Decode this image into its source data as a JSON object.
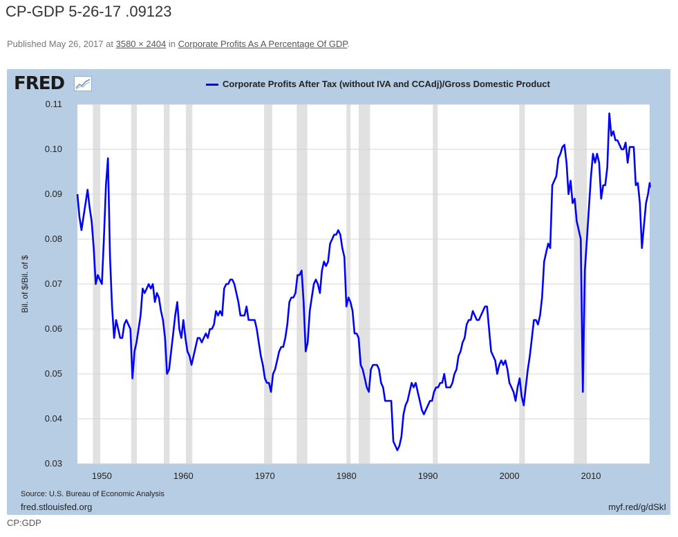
{
  "page": {
    "title": "CP-GDP 5-26-17 .09123",
    "published_prefix": "Published",
    "published_date": "May 26, 2017",
    "at_word": "at",
    "dimensions_link": "3580 × 2404",
    "in_word": "in",
    "category_link": "Corporate Profits As A Percentage Of GDP",
    "trailing_period": ".",
    "caption": "CP:GDP"
  },
  "fred": {
    "logo_text": "FRED",
    "source": "Source: U.S. Bureau of Economic Analysis",
    "site": "fred.stlouisfed.org",
    "short_url": "myf.red/g/dSkI"
  },
  "colors": {
    "series": "#0000ff",
    "recession": "#e1e1e1",
    "frame": "#b7cde3",
    "grid": "#d5d5d5"
  },
  "chart_data": {
    "type": "line",
    "title": "",
    "xlabel": "",
    "ylabel": "Bil. of $/Bil. of $",
    "xlim": [
      1947,
      2017.2
    ],
    "ylim": [
      0.03,
      0.11
    ],
    "x_ticks": [
      1950,
      1960,
      1970,
      1980,
      1990,
      2000,
      2010
    ],
    "y_ticks": [
      "0.03",
      "0.04",
      "0.05",
      "0.06",
      "0.07",
      "0.08",
      "0.09",
      "0.10",
      "0.11"
    ],
    "grid": "horizontal",
    "legend_position": "top-center",
    "recessions": [
      [
        1948.9,
        1949.8
      ],
      [
        1953.6,
        1954.3
      ],
      [
        1957.6,
        1958.3
      ],
      [
        1960.3,
        1961.1
      ],
      [
        1969.9,
        1970.9
      ],
      [
        1973.9,
        1975.2
      ],
      [
        1980.0,
        1980.5
      ],
      [
        1981.5,
        1982.9
      ],
      [
        1990.6,
        1991.2
      ],
      [
        2001.2,
        2001.9
      ],
      [
        2007.9,
        2009.5
      ]
    ],
    "series": [
      {
        "name": "Corporate Profits After Tax (without IVA and CCAdj)/Gross Domestic Product",
        "points": [
          [
            1947.0,
            0.09
          ],
          [
            1947.25,
            0.085
          ],
          [
            1947.5,
            0.082
          ],
          [
            1947.75,
            0.085
          ],
          [
            1948.0,
            0.088
          ],
          [
            1948.25,
            0.091
          ],
          [
            1948.5,
            0.087
          ],
          [
            1948.75,
            0.084
          ],
          [
            1949.0,
            0.078
          ],
          [
            1949.25,
            0.07
          ],
          [
            1949.5,
            0.072
          ],
          [
            1949.75,
            0.071
          ],
          [
            1950.0,
            0.07
          ],
          [
            1950.25,
            0.08
          ],
          [
            1950.5,
            0.092
          ],
          [
            1950.75,
            0.098
          ],
          [
            1951.0,
            0.076
          ],
          [
            1951.25,
            0.065
          ],
          [
            1951.5,
            0.058
          ],
          [
            1951.75,
            0.062
          ],
          [
            1952.0,
            0.06
          ],
          [
            1952.25,
            0.058
          ],
          [
            1952.5,
            0.058
          ],
          [
            1952.75,
            0.061
          ],
          [
            1953.0,
            0.062
          ],
          [
            1953.25,
            0.061
          ],
          [
            1953.5,
            0.06
          ],
          [
            1953.75,
            0.049
          ],
          [
            1954.0,
            0.055
          ],
          [
            1954.25,
            0.057
          ],
          [
            1954.5,
            0.06
          ],
          [
            1954.75,
            0.063
          ],
          [
            1955.0,
            0.069
          ],
          [
            1955.25,
            0.068
          ],
          [
            1955.5,
            0.069
          ],
          [
            1955.75,
            0.07
          ],
          [
            1956.0,
            0.069
          ],
          [
            1956.25,
            0.07
          ],
          [
            1956.5,
            0.066
          ],
          [
            1956.75,
            0.068
          ],
          [
            1957.0,
            0.067
          ],
          [
            1957.25,
            0.064
          ],
          [
            1957.5,
            0.062
          ],
          [
            1957.75,
            0.058
          ],
          [
            1958.0,
            0.05
          ],
          [
            1958.25,
            0.051
          ],
          [
            1958.5,
            0.055
          ],
          [
            1958.75,
            0.059
          ],
          [
            1959.0,
            0.063
          ],
          [
            1959.25,
            0.066
          ],
          [
            1959.5,
            0.06
          ],
          [
            1959.75,
            0.058
          ],
          [
            1960.0,
            0.062
          ],
          [
            1960.25,
            0.058
          ],
          [
            1960.5,
            0.055
          ],
          [
            1960.75,
            0.054
          ],
          [
            1961.0,
            0.052
          ],
          [
            1961.25,
            0.054
          ],
          [
            1961.5,
            0.056
          ],
          [
            1961.75,
            0.058
          ],
          [
            1962.0,
            0.058
          ],
          [
            1962.25,
            0.057
          ],
          [
            1962.5,
            0.058
          ],
          [
            1962.75,
            0.059
          ],
          [
            1963.0,
            0.058
          ],
          [
            1963.25,
            0.06
          ],
          [
            1963.5,
            0.06
          ],
          [
            1963.75,
            0.061
          ],
          [
            1964.0,
            0.064
          ],
          [
            1964.25,
            0.063
          ],
          [
            1964.5,
            0.064
          ],
          [
            1964.75,
            0.063
          ],
          [
            1965.0,
            0.069
          ],
          [
            1965.25,
            0.07
          ],
          [
            1965.5,
            0.07
          ],
          [
            1965.75,
            0.071
          ],
          [
            1966.0,
            0.071
          ],
          [
            1966.25,
            0.07
          ],
          [
            1966.5,
            0.068
          ],
          [
            1966.75,
            0.066
          ],
          [
            1967.0,
            0.063
          ],
          [
            1967.25,
            0.063
          ],
          [
            1967.5,
            0.063
          ],
          [
            1967.75,
            0.065
          ],
          [
            1968.0,
            0.062
          ],
          [
            1968.25,
            0.062
          ],
          [
            1968.5,
            0.062
          ],
          [
            1968.75,
            0.062
          ],
          [
            1969.0,
            0.06
          ],
          [
            1969.25,
            0.057
          ],
          [
            1969.5,
            0.054
          ],
          [
            1969.75,
            0.052
          ],
          [
            1970.0,
            0.049
          ],
          [
            1970.25,
            0.048
          ],
          [
            1970.5,
            0.048
          ],
          [
            1970.75,
            0.046
          ],
          [
            1971.0,
            0.05
          ],
          [
            1971.25,
            0.051
          ],
          [
            1971.5,
            0.053
          ],
          [
            1971.75,
            0.055
          ],
          [
            1972.0,
            0.056
          ],
          [
            1972.25,
            0.056
          ],
          [
            1972.5,
            0.058
          ],
          [
            1972.75,
            0.061
          ],
          [
            1973.0,
            0.066
          ],
          [
            1973.25,
            0.067
          ],
          [
            1973.5,
            0.067
          ],
          [
            1973.75,
            0.068
          ],
          [
            1974.0,
            0.072
          ],
          [
            1974.25,
            0.072
          ],
          [
            1974.5,
            0.073
          ],
          [
            1974.75,
            0.066
          ],
          [
            1975.0,
            0.055
          ],
          [
            1975.25,
            0.057
          ],
          [
            1975.5,
            0.064
          ],
          [
            1975.75,
            0.067
          ],
          [
            1976.0,
            0.07
          ],
          [
            1976.25,
            0.071
          ],
          [
            1976.5,
            0.07
          ],
          [
            1976.75,
            0.068
          ],
          [
            1977.0,
            0.073
          ],
          [
            1977.25,
            0.075
          ],
          [
            1977.5,
            0.074
          ],
          [
            1977.75,
            0.075
          ],
          [
            1978.0,
            0.079
          ],
          [
            1978.25,
            0.08
          ],
          [
            1978.5,
            0.081
          ],
          [
            1978.75,
            0.081
          ],
          [
            1979.0,
            0.082
          ],
          [
            1979.25,
            0.081
          ],
          [
            1979.5,
            0.078
          ],
          [
            1979.75,
            0.076
          ],
          [
            1980.0,
            0.065
          ],
          [
            1980.25,
            0.067
          ],
          [
            1980.5,
            0.066
          ],
          [
            1980.75,
            0.064
          ],
          [
            1981.0,
            0.059
          ],
          [
            1981.25,
            0.059
          ],
          [
            1981.5,
            0.058
          ],
          [
            1981.75,
            0.052
          ],
          [
            1982.0,
            0.051
          ],
          [
            1982.25,
            0.049
          ],
          [
            1982.5,
            0.047
          ],
          [
            1982.75,
            0.046
          ],
          [
            1983.0,
            0.051
          ],
          [
            1983.25,
            0.052
          ],
          [
            1983.5,
            0.052
          ],
          [
            1983.75,
            0.052
          ],
          [
            1984.0,
            0.051
          ],
          [
            1984.25,
            0.048
          ],
          [
            1984.5,
            0.047
          ],
          [
            1984.75,
            0.044
          ],
          [
            1985.0,
            0.044
          ],
          [
            1985.25,
            0.044
          ],
          [
            1985.5,
            0.044
          ],
          [
            1985.75,
            0.035
          ],
          [
            1986.0,
            0.034
          ],
          [
            1986.25,
            0.033
          ],
          [
            1986.5,
            0.034
          ],
          [
            1986.75,
            0.036
          ],
          [
            1987.0,
            0.041
          ],
          [
            1987.25,
            0.043
          ],
          [
            1987.5,
            0.044
          ],
          [
            1987.75,
            0.046
          ],
          [
            1988.0,
            0.048
          ],
          [
            1988.25,
            0.047
          ],
          [
            1988.5,
            0.048
          ],
          [
            1988.75,
            0.046
          ],
          [
            1989.0,
            0.044
          ],
          [
            1989.25,
            0.042
          ],
          [
            1989.5,
            0.041
          ],
          [
            1989.75,
            0.042
          ],
          [
            1990.0,
            0.043
          ],
          [
            1990.25,
            0.044
          ],
          [
            1990.5,
            0.044
          ],
          [
            1990.75,
            0.046
          ],
          [
            1991.0,
            0.047
          ],
          [
            1991.25,
            0.047
          ],
          [
            1991.5,
            0.048
          ],
          [
            1991.75,
            0.048
          ],
          [
            1992.0,
            0.05
          ],
          [
            1992.25,
            0.047
          ],
          [
            1992.5,
            0.047
          ],
          [
            1992.75,
            0.047
          ],
          [
            1993.0,
            0.048
          ],
          [
            1993.25,
            0.05
          ],
          [
            1993.5,
            0.051
          ],
          [
            1993.75,
            0.054
          ],
          [
            1994.0,
            0.055
          ],
          [
            1994.25,
            0.057
          ],
          [
            1994.5,
            0.058
          ],
          [
            1994.75,
            0.061
          ],
          [
            1995.0,
            0.062
          ],
          [
            1995.25,
            0.062
          ],
          [
            1995.5,
            0.064
          ],
          [
            1995.75,
            0.063
          ],
          [
            1996.0,
            0.062
          ],
          [
            1996.25,
            0.062
          ],
          [
            1996.5,
            0.063
          ],
          [
            1996.75,
            0.064
          ],
          [
            1997.0,
            0.065
          ],
          [
            1997.25,
            0.065
          ],
          [
            1997.5,
            0.06
          ],
          [
            1997.75,
            0.055
          ],
          [
            1998.0,
            0.054
          ],
          [
            1998.25,
            0.053
          ],
          [
            1998.5,
            0.05
          ],
          [
            1998.75,
            0.052
          ],
          [
            1999.0,
            0.053
          ],
          [
            1999.25,
            0.052
          ],
          [
            1999.5,
            0.053
          ],
          [
            1999.75,
            0.051
          ],
          [
            2000.0,
            0.048
          ],
          [
            2000.25,
            0.047
          ],
          [
            2000.5,
            0.046
          ],
          [
            2000.75,
            0.044
          ],
          [
            2001.0,
            0.047
          ],
          [
            2001.25,
            0.049
          ],
          [
            2001.5,
            0.045
          ],
          [
            2001.75,
            0.043
          ],
          [
            2002.0,
            0.047
          ],
          [
            2002.25,
            0.051
          ],
          [
            2002.5,
            0.054
          ],
          [
            2002.75,
            0.058
          ],
          [
            2003.0,
            0.062
          ],
          [
            2003.25,
            0.062
          ],
          [
            2003.5,
            0.061
          ],
          [
            2003.75,
            0.063
          ],
          [
            2004.0,
            0.067
          ],
          [
            2004.25,
            0.075
          ],
          [
            2004.5,
            0.077
          ],
          [
            2004.75,
            0.079
          ],
          [
            2005.0,
            0.078
          ],
          [
            2005.25,
            0.092
          ],
          [
            2005.5,
            0.093
          ],
          [
            2005.75,
            0.094
          ],
          [
            2006.0,
            0.098
          ],
          [
            2006.25,
            0.099
          ],
          [
            2006.5,
            0.1005
          ],
          [
            2006.75,
            0.101
          ],
          [
            2007.0,
            0.097
          ],
          [
            2007.25,
            0.09
          ],
          [
            2007.5,
            0.093
          ],
          [
            2007.75,
            0.088
          ],
          [
            2008.0,
            0.089
          ],
          [
            2008.25,
            0.084
          ],
          [
            2008.5,
            0.082
          ],
          [
            2008.75,
            0.08
          ],
          [
            2009.0,
            0.046
          ],
          [
            2009.25,
            0.073
          ],
          [
            2009.5,
            0.08
          ],
          [
            2009.75,
            0.087
          ],
          [
            2010.0,
            0.094
          ],
          [
            2010.25,
            0.099
          ],
          [
            2010.5,
            0.097
          ],
          [
            2010.75,
            0.099
          ],
          [
            2011.0,
            0.097
          ],
          [
            2011.25,
            0.089
          ],
          [
            2011.5,
            0.092
          ],
          [
            2011.75,
            0.092
          ],
          [
            2012.0,
            0.096
          ],
          [
            2012.25,
            0.108
          ],
          [
            2012.5,
            0.103
          ],
          [
            2012.75,
            0.104
          ],
          [
            2013.0,
            0.102
          ],
          [
            2013.25,
            0.102
          ],
          [
            2013.5,
            0.101
          ],
          [
            2013.75,
            0.1
          ],
          [
            2014.0,
            0.1
          ],
          [
            2014.25,
            0.1015
          ],
          [
            2014.5,
            0.097
          ],
          [
            2014.75,
            0.1005
          ],
          [
            2015.0,
            0.1005
          ],
          [
            2015.25,
            0.1005
          ],
          [
            2015.5,
            0.092
          ],
          [
            2015.75,
            0.0925
          ],
          [
            2016.0,
            0.088
          ],
          [
            2016.25,
            0.078
          ],
          [
            2016.5,
            0.083
          ],
          [
            2016.75,
            0.088
          ],
          [
            2017.0,
            0.09
          ],
          [
            2017.2,
            0.0925
          ],
          [
            2017.25,
            0.0915
          ]
        ]
      }
    ]
  }
}
